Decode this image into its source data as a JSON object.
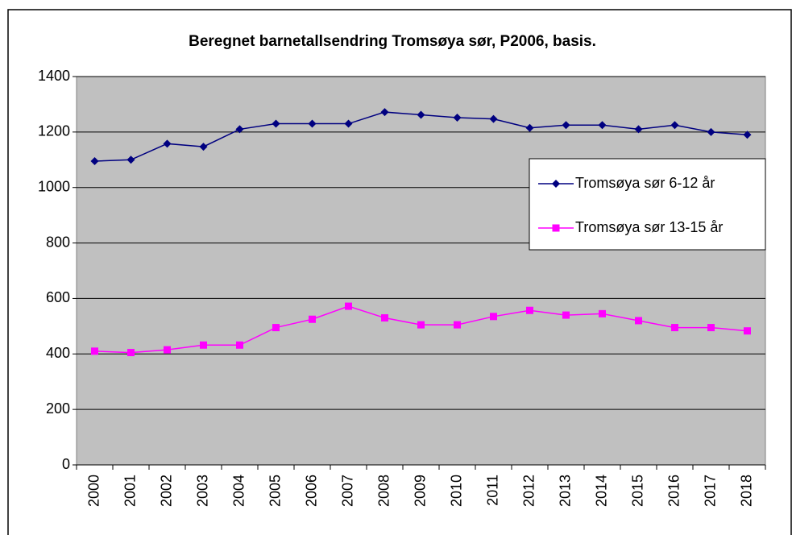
{
  "chart_data": {
    "type": "line",
    "title": "Beregnet barnetallsendring Tromsøya sør, P2006, basis.",
    "categories": [
      "2000",
      "2001",
      "2002",
      "2003",
      "2004",
      "2005",
      "2006",
      "2007",
      "2008",
      "2009",
      "2010",
      "2011",
      "2012",
      "2013",
      "2014",
      "2015",
      "2016",
      "2017",
      "2018"
    ],
    "series": [
      {
        "name": "Tromsøya sør 6-12 år",
        "color": "#000080",
        "marker": "diamond",
        "values": [
          1095,
          1100,
          1158,
          1147,
          1210,
          1230,
          1230,
          1230,
          1272,
          1262,
          1252,
          1247,
          1215,
          1225,
          1225,
          1210,
          1225,
          1200,
          1190
        ]
      },
      {
        "name": "Tromsøya sør 13-15 år",
        "color": "#ff00ff",
        "marker": "square",
        "values": [
          410,
          405,
          415,
          432,
          432,
          495,
          525,
          572,
          530,
          505,
          505,
          535,
          557,
          540,
          545,
          520,
          495,
          495,
          483
        ]
      }
    ],
    "ylim": [
      0,
      1400
    ],
    "yticks": [
      0,
      200,
      400,
      600,
      800,
      1000,
      1200,
      1400
    ],
    "grid": true,
    "legend": "right"
  }
}
